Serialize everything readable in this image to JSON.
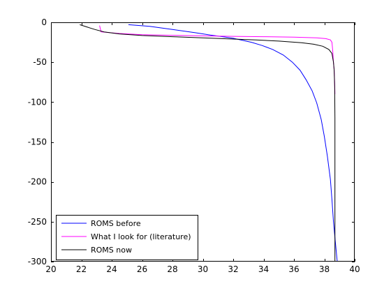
{
  "chart_data": {
    "type": "line",
    "title": "",
    "xlabel": "",
    "ylabel": "",
    "xlim": [
      20,
      40
    ],
    "ylim": [
      -300,
      0
    ],
    "xticks": [
      20,
      22,
      24,
      26,
      28,
      30,
      32,
      34,
      36,
      38,
      40
    ],
    "yticks": [
      0,
      -50,
      -100,
      -150,
      -200,
      -250,
      -300
    ],
    "grid": false,
    "legend_position": "bottom-left",
    "series": [
      {
        "name": "ROMS before",
        "color": "#0000ff",
        "points": [
          [
            25.1,
            -3
          ],
          [
            26.5,
            -5
          ],
          [
            28.0,
            -9
          ],
          [
            29.5,
            -13
          ],
          [
            30.5,
            -16
          ],
          [
            31.3,
            -18
          ],
          [
            32.0,
            -20
          ],
          [
            32.6,
            -22.5
          ],
          [
            33.2,
            -25
          ],
          [
            33.9,
            -29
          ],
          [
            34.6,
            -34
          ],
          [
            35.3,
            -41
          ],
          [
            35.9,
            -50
          ],
          [
            36.4,
            -60
          ],
          [
            36.8,
            -72
          ],
          [
            37.2,
            -86
          ],
          [
            37.5,
            -101
          ],
          [
            37.8,
            -122
          ],
          [
            38.0,
            -143
          ],
          [
            38.2,
            -168
          ],
          [
            38.4,
            -197
          ],
          [
            38.5,
            -222
          ],
          [
            38.6,
            -250
          ],
          [
            38.7,
            -270
          ],
          [
            38.8,
            -290
          ],
          [
            38.85,
            -300
          ]
        ]
      },
      {
        "name": "What I look for (literature)",
        "color": "#ff00ff",
        "points": [
          [
            23.2,
            -4
          ],
          [
            23.25,
            -8
          ],
          [
            23.3,
            -12
          ],
          [
            24.5,
            -14
          ],
          [
            26.0,
            -15.5
          ],
          [
            28.0,
            -16.3
          ],
          [
            30.0,
            -17
          ],
          [
            32.0,
            -17.6
          ],
          [
            34.0,
            -18
          ],
          [
            36.0,
            -18.6
          ],
          [
            37.5,
            -19.5
          ],
          [
            38.1,
            -20.5
          ],
          [
            38.4,
            -22
          ],
          [
            38.5,
            -25
          ],
          [
            38.55,
            -35
          ],
          [
            38.6,
            -50
          ],
          [
            38.65,
            -60
          ],
          [
            38.68,
            -75
          ],
          [
            38.7,
            -90
          ]
        ]
      },
      {
        "name": "ROMS now",
        "color": "#000000",
        "points": [
          [
            21.9,
            -3
          ],
          [
            22.4,
            -6
          ],
          [
            22.9,
            -9
          ],
          [
            23.5,
            -12
          ],
          [
            24.5,
            -14.5
          ],
          [
            26.0,
            -16.5
          ],
          [
            28.0,
            -18
          ],
          [
            30.0,
            -19.5
          ],
          [
            32.0,
            -21
          ],
          [
            33.5,
            -22
          ],
          [
            35.0,
            -23.5
          ],
          [
            36.5,
            -25.5
          ],
          [
            37.3,
            -27.5
          ],
          [
            37.9,
            -30
          ],
          [
            38.3,
            -34
          ],
          [
            38.5,
            -39
          ],
          [
            38.6,
            -50
          ],
          [
            38.65,
            -60
          ],
          [
            38.68,
            -80
          ],
          [
            38.7,
            -120
          ],
          [
            38.7,
            -200
          ],
          [
            38.7,
            -300
          ]
        ]
      }
    ]
  }
}
